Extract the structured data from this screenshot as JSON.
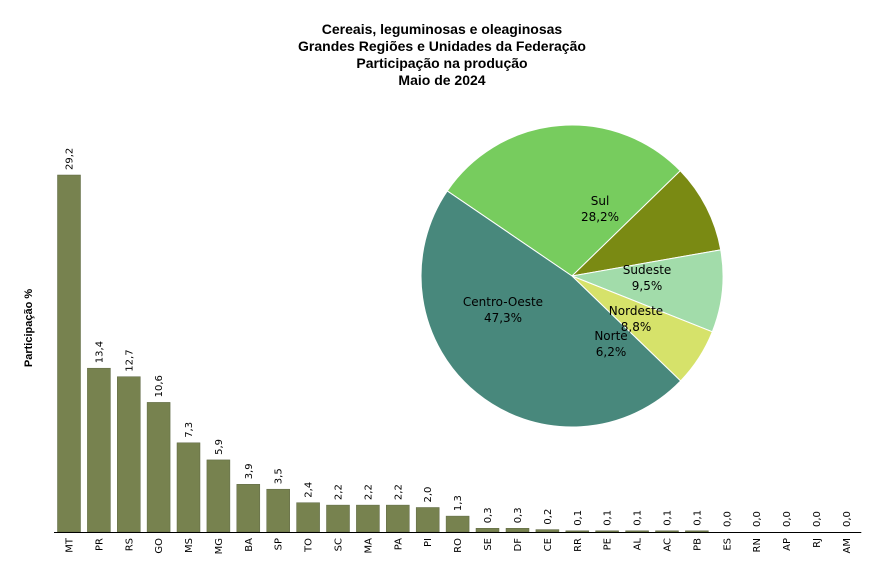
{
  "title_lines": [
    "Cereais, leguminosas e oleaginosas",
    "Grandes Regiões e Unidades da Federação",
    "Participação na produção",
    "Maio de 2024"
  ],
  "colors": {
    "bar": "#77824f",
    "bar_stroke": "#5b6440",
    "axis": "#000000"
  },
  "chart_data": [
    {
      "type": "bar",
      "ylabel": "Participação %",
      "categories": [
        "MT",
        "PR",
        "RS",
        "GO",
        "MS",
        "MG",
        "BA",
        "SP",
        "TO",
        "SC",
        "MA",
        "PA",
        "PI",
        "RO",
        "SE",
        "DF",
        "CE",
        "RR",
        "PE",
        "AL",
        "AC",
        "PB",
        "ES",
        "RN",
        "AP",
        "RJ",
        "AM"
      ],
      "values": [
        29.2,
        13.4,
        12.7,
        10.6,
        7.3,
        5.9,
        3.9,
        3.5,
        2.4,
        2.2,
        2.2,
        2.2,
        2.0,
        1.3,
        0.3,
        0.3,
        0.2,
        0.1,
        0.1,
        0.1,
        0.1,
        0.1,
        0.0,
        0.0,
        0.0,
        0.0,
        0.0
      ],
      "value_labels": [
        "29,2",
        "13,4",
        "12,7",
        "10,6",
        "7,3",
        "5,9",
        "3,9",
        "3,5",
        "2,4",
        "2,2",
        "2,2",
        "2,2",
        "2,0",
        "1,3",
        "0,3",
        "0,3",
        "0,2",
        "0,1",
        "0,1",
        "0,1",
        "0,1",
        "0,1",
        "0,0",
        "0,0",
        "0,0",
        "0,0",
        "0,0"
      ],
      "ylim": [
        0,
        29.2
      ]
    },
    {
      "type": "pie",
      "slices": [
        {
          "name": "Sul",
          "value": 28.2,
          "label": "28,2%",
          "color": "#77cc5e"
        },
        {
          "name": "Sudeste",
          "value": 9.5,
          "label": "9,5%",
          "color": "#7a8a13"
        },
        {
          "name": "Nordeste",
          "value": 8.8,
          "label": "8,8%",
          "color": "#a2dcaa"
        },
        {
          "name": "Norte",
          "value": 6.2,
          "label": "6,2%",
          "color": "#d6e26a"
        },
        {
          "name": "Centro-Oeste",
          "value": 47.3,
          "label": "47,3%",
          "color": "#48887c"
        }
      ]
    }
  ]
}
